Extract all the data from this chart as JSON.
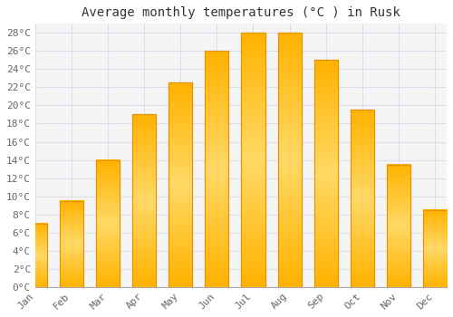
{
  "title": "Average monthly temperatures (°C ) in Rusk",
  "months": [
    "Jan",
    "Feb",
    "Mar",
    "Apr",
    "May",
    "Jun",
    "Jul",
    "Aug",
    "Sep",
    "Oct",
    "Nov",
    "Dec"
  ],
  "values": [
    7.0,
    9.5,
    14.0,
    19.0,
    22.5,
    26.0,
    28.0,
    28.0,
    25.0,
    19.5,
    13.5,
    8.5
  ],
  "bar_color_bottom": "#FFB300",
  "bar_color_top": "#FFD966",
  "bar_edge_color": "#E89000",
  "ylim": [
    0,
    29
  ],
  "yticks": [
    0,
    2,
    4,
    6,
    8,
    10,
    12,
    14,
    16,
    18,
    20,
    22,
    24,
    26,
    28
  ],
  "ytick_labels": [
    "0°C",
    "2°C",
    "4°C",
    "6°C",
    "8°C",
    "10°C",
    "12°C",
    "14°C",
    "16°C",
    "18°C",
    "20°C",
    "22°C",
    "24°C",
    "26°C",
    "28°C"
  ],
  "bg_color": "#ffffff",
  "plot_bg_color": "#f5f5f5",
  "grid_color": "#ddddee",
  "title_fontsize": 10,
  "tick_fontsize": 8,
  "bar_width": 0.65
}
